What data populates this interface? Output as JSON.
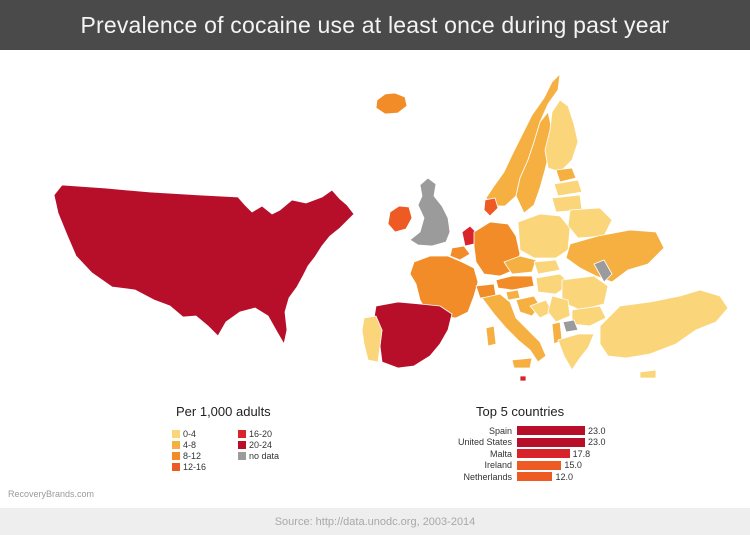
{
  "title": "Prevalence of cocaine use at least once during past year",
  "legend": {
    "title": "Per 1,000 adults",
    "items": [
      {
        "label": "0-4",
        "color": "#fbd57a"
      },
      {
        "label": "16-20",
        "color": "#d8232a"
      },
      {
        "label": "4-8",
        "color": "#f5b041"
      },
      {
        "label": "20-24",
        "color": "#b70f2a"
      },
      {
        "label": "8-12",
        "color": "#f28c28"
      },
      {
        "label": "no data",
        "color": "#9b9b9b"
      },
      {
        "label": "12-16",
        "color": "#ee5a24"
      }
    ]
  },
  "top5": {
    "title": "Top 5 countries",
    "max": 23.0,
    "rows": [
      {
        "country": "Spain",
        "value": 23.0,
        "label": "23.0",
        "color": "#b70f2a"
      },
      {
        "country": "United States",
        "value": 23.0,
        "label": "23.0",
        "color": "#b70f2a"
      },
      {
        "country": "Malta",
        "value": 17.8,
        "label": "17.8",
        "color": "#d8232a"
      },
      {
        "country": "Ireland",
        "value": 15.0,
        "label": "15.0",
        "color": "#ee5a24"
      },
      {
        "country": "Netherlands",
        "value": 12.0,
        "label": "12.0",
        "color": "#ee5a24"
      }
    ]
  },
  "watermark": "RecoveryBrands.com",
  "source": "Source: http://data.unodc.org, 2003-2014",
  "colors": {
    "c0_4": "#fbd57a",
    "c4_8": "#f5b041",
    "c8_12": "#f28c28",
    "c12_16": "#ee5a24",
    "c16_20": "#d8232a",
    "c20_24": "#b70f2a",
    "nodata": "#9b9b9b",
    "title_bar": "#4a4a4a",
    "footer_bar": "#eeeeee"
  }
}
